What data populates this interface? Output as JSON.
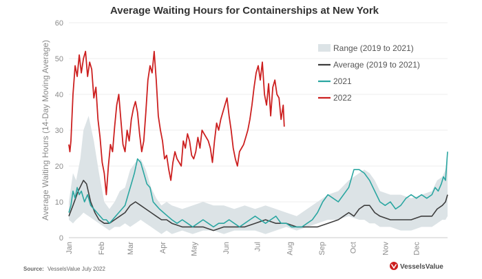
{
  "chart_data": {
    "type": "line",
    "title": "Average Waiting Hours for Containerships at New York",
    "ylabel": "Average Waiting Hours (14-Day Moving Average)",
    "xlabel": "",
    "ylim": [
      0,
      60
    ],
    "yticks": [
      0,
      10,
      20,
      30,
      40,
      50,
      60
    ],
    "months": [
      "Jan",
      "Feb",
      "Mar",
      "Apr",
      "May",
      "Jun",
      "Jul",
      "Aug",
      "Sep",
      "Oct",
      "Nov",
      "Dec"
    ],
    "x_unit": "day of year",
    "xlim": [
      1,
      365
    ],
    "legend": {
      "placement": "top-right",
      "entries": [
        {
          "label": "Range (2019 to 2021)",
          "kind": "band",
          "color": "#dce3e6"
        },
        {
          "label": "Average (2019 to 2021)",
          "kind": "line",
          "color": "#3d3d3d"
        },
        {
          "label": "2021",
          "kind": "line",
          "color": "#2aa6a1"
        },
        {
          "label": "2022",
          "kind": "line",
          "color": "#cc1f1f"
        }
      ]
    },
    "range_band": {
      "name": "Range (2019 to 2021)",
      "x": [
        1,
        5,
        8,
        12,
        15,
        20,
        25,
        30,
        35,
        40,
        45,
        50,
        55,
        60,
        65,
        70,
        75,
        80,
        85,
        90,
        95,
        100,
        110,
        120,
        130,
        140,
        150,
        160,
        170,
        180,
        190,
        200,
        210,
        220,
        230,
        240,
        250,
        260,
        270,
        280,
        285,
        290,
        295,
        300,
        310,
        320,
        330,
        340,
        350,
        355,
        360,
        363,
        365
      ],
      "upper": [
        10,
        18,
        16,
        22,
        30,
        34,
        27,
        18,
        10,
        8,
        10,
        13,
        14,
        19,
        21,
        22,
        19,
        14,
        11,
        9,
        10,
        9,
        8,
        9,
        10,
        9,
        9,
        8,
        9,
        8,
        9,
        8,
        7,
        6,
        8,
        10,
        12,
        13,
        16,
        18,
        19,
        18,
        16,
        13,
        12,
        12,
        11,
        12,
        13,
        16,
        17,
        19,
        22
      ],
      "lower": [
        5,
        4,
        5,
        6,
        7,
        6,
        5,
        4,
        3,
        2,
        3,
        3,
        4,
        3,
        4,
        5,
        4,
        3,
        2,
        1,
        2,
        1,
        2,
        1,
        2,
        2,
        1,
        2,
        2,
        2,
        1,
        2,
        3,
        2,
        3,
        4,
        5,
        5,
        6,
        5,
        5,
        4,
        4,
        3,
        3,
        2,
        2,
        3,
        3,
        4,
        5,
        5,
        6
      ]
    },
    "series": [
      {
        "name": "Average (2019 to 2021)",
        "color": "#3d3d3d",
        "x": [
          1,
          5,
          10,
          15,
          18,
          22,
          26,
          30,
          35,
          40,
          45,
          50,
          55,
          60,
          65,
          70,
          75,
          80,
          85,
          90,
          95,
          100,
          110,
          120,
          130,
          140,
          150,
          160,
          170,
          180,
          190,
          200,
          210,
          220,
          230,
          240,
          250,
          260,
          265,
          270,
          275,
          280,
          285,
          290,
          295,
          300,
          310,
          320,
          330,
          340,
          350,
          355,
          360,
          363,
          365
        ],
        "values": [
          6,
          9,
          13,
          16,
          15,
          10,
          7,
          5,
          4,
          4,
          5,
          6,
          7,
          9,
          10,
          9,
          8,
          7,
          6,
          5,
          5,
          4,
          3,
          3,
          3,
          2,
          3,
          3,
          3,
          4,
          5,
          4,
          4,
          3,
          3,
          3,
          4,
          5,
          6,
          7,
          6,
          8,
          9,
          9,
          7,
          6,
          5,
          5,
          5,
          6,
          6,
          8,
          9,
          10,
          12
        ]
      },
      {
        "name": "2021",
        "color": "#2aa6a1",
        "x": [
          1,
          3,
          5,
          7,
          9,
          11,
          13,
          16,
          19,
          22,
          25,
          28,
          31,
          34,
          37,
          40,
          43,
          46,
          49,
          52,
          55,
          58,
          61,
          64,
          67,
          70,
          73,
          76,
          79,
          82,
          85,
          88,
          92,
          96,
          100,
          105,
          110,
          115,
          120,
          125,
          130,
          135,
          140,
          145,
          150,
          155,
          160,
          165,
          170,
          175,
          180,
          185,
          190,
          195,
          200,
          205,
          210,
          215,
          220,
          225,
          230,
          235,
          240,
          245,
          250,
          255,
          260,
          265,
          270,
          275,
          280,
          285,
          290,
          295,
          300,
          305,
          310,
          315,
          320,
          325,
          330,
          335,
          340,
          345,
          350,
          353,
          356,
          359,
          361,
          363,
          365
        ],
        "values": [
          7,
          9,
          13,
          11,
          14,
          12,
          13,
          10,
          12,
          9,
          8,
          7,
          6,
          5,
          5,
          4,
          5,
          6,
          7,
          8,
          9,
          12,
          15,
          18,
          22,
          21,
          18,
          15,
          14,
          10,
          9,
          8,
          7,
          6,
          5,
          4,
          5,
          4,
          3,
          4,
          5,
          4,
          3,
          4,
          4,
          5,
          4,
          3,
          4,
          5,
          6,
          5,
          4,
          5,
          6,
          4,
          4,
          3,
          3,
          3,
          4,
          5,
          7,
          10,
          12,
          11,
          10,
          12,
          14,
          19,
          19,
          18,
          16,
          13,
          10,
          9,
          10,
          8,
          9,
          11,
          12,
          11,
          12,
          11,
          12,
          14,
          13,
          15,
          17,
          16,
          24
        ]
      },
      {
        "name": "2022",
        "color": "#cc1f1f",
        "x": [
          1,
          2,
          3,
          5,
          7,
          9,
          11,
          13,
          15,
          17,
          19,
          21,
          23,
          25,
          27,
          29,
          31,
          33,
          35,
          37,
          39,
          41,
          43,
          45,
          47,
          49,
          51,
          53,
          55,
          57,
          59,
          61,
          63,
          65,
          67,
          69,
          71,
          73,
          75,
          77,
          79,
          81,
          83,
          85,
          87,
          89,
          91,
          93,
          95,
          97,
          99,
          101,
          103,
          105,
          107,
          109,
          111,
          113,
          115,
          117,
          119,
          121,
          123,
          125,
          127,
          129,
          131,
          133,
          135,
          137,
          139,
          141,
          143,
          145,
          147,
          149,
          151,
          153,
          155,
          157,
          159,
          161,
          163,
          165,
          167,
          169,
          171,
          173,
          175,
          177,
          179,
          181,
          183,
          185,
          187,
          189,
          191,
          193,
          195,
          197,
          199,
          201,
          203,
          205,
          207,
          208
        ],
        "values": [
          26,
          24,
          27,
          40,
          48,
          45,
          51,
          46,
          50,
          52,
          45,
          49,
          47,
          39,
          42,
          33,
          28,
          21,
          18,
          12,
          20,
          26,
          24,
          31,
          37,
          40,
          33,
          26,
          24,
          30,
          27,
          33,
          36,
          38,
          35,
          29,
          24,
          27,
          35,
          44,
          48,
          46,
          52,
          44,
          34,
          30,
          27,
          22,
          23,
          19,
          16,
          21,
          24,
          22,
          21,
          20,
          27,
          25,
          29,
          27,
          23,
          22,
          24,
          28,
          25,
          30,
          29,
          28,
          27,
          25,
          21,
          27,
          32,
          30,
          33,
          35,
          37,
          39,
          34,
          30,
          25,
          22,
          20,
          24,
          25,
          26,
          28,
          30,
          33,
          37,
          42,
          46,
          48,
          44,
          49,
          40,
          37,
          43,
          34,
          42,
          44,
          40,
          39,
          33,
          37,
          31
        ]
      }
    ],
    "source": {
      "label": "Source:",
      "text": "VesselsValue July 2022"
    },
    "brand": "VesselsValue"
  }
}
